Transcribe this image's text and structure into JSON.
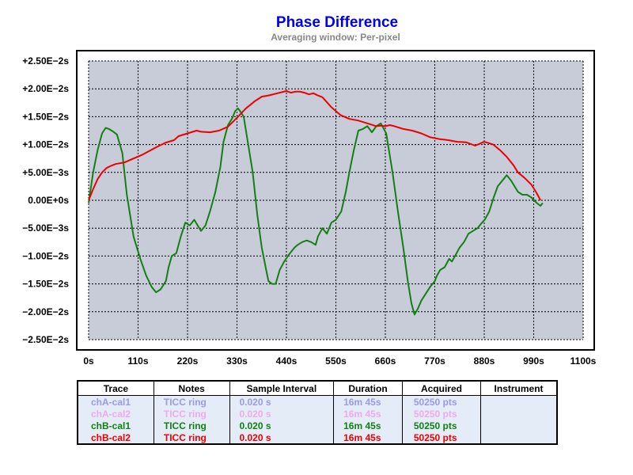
{
  "title": "Phase Difference",
  "subtitle": "Averaging window: Per-pixel",
  "chart_data": {
    "type": "line",
    "xlim": [
      0,
      1100
    ],
    "ylim": [
      -0.025,
      0.025
    ],
    "x_ticks": [
      "0s",
      "110s",
      "220s",
      "330s",
      "440s",
      "550s",
      "660s",
      "770s",
      "880s",
      "990s",
      "1100s"
    ],
    "y_ticks": [
      "+2.50E−2s",
      "+2.00E−2s",
      "+1.50E−2s",
      "+1.00E−2s",
      "+5.00E−3s",
      "0.00E+0s",
      "−5.00E−3s",
      "−1.00E−2s",
      "−1.50E−2s",
      "−2.00E−2s",
      "−2.50E−2s"
    ],
    "y_tick_values": [
      0.025,
      0.02,
      0.015,
      0.01,
      0.005,
      0,
      -0.005,
      -0.01,
      -0.015,
      -0.02,
      -0.025
    ],
    "grid": true,
    "plot_bg": "#c8ccd8",
    "series": [
      {
        "name": "chB-cal1",
        "color": "#138013",
        "x": [
          0,
          10,
          20,
          30,
          38,
          45,
          55,
          63,
          75,
          85,
          100,
          115,
          128,
          140,
          150,
          160,
          172,
          178,
          185,
          195,
          205,
          215,
          225,
          235,
          250,
          260,
          270,
          282,
          293,
          300,
          310,
          320,
          326,
          332,
          337,
          345,
          355,
          365,
          375,
          385,
          395,
          400,
          408,
          416,
          425,
          435,
          445,
          458,
          465,
          475,
          485,
          495,
          505,
          510,
          520,
          530,
          540,
          550,
          562,
          572,
          580,
          590,
          600,
          610,
          620,
          630,
          640,
          650,
          662,
          676,
          688,
          700,
          710,
          718,
          725,
          732,
          740,
          748,
          760,
          770,
          775,
          782,
          792,
          802,
          808,
          815,
          825,
          835,
          845,
          855,
          865,
          873,
          881,
          891,
          901,
          910,
          920,
          930,
          940,
          955,
          965,
          975,
          985,
          997,
          1005,
          1010
        ],
        "y": [
          -0.0005,
          0.005,
          0.009,
          0.012,
          0.013,
          0.0128,
          0.0123,
          0.0118,
          0.0085,
          0.001,
          -0.0065,
          -0.0105,
          -0.0135,
          -0.0155,
          -0.0165,
          -0.016,
          -0.0145,
          -0.012,
          -0.01,
          -0.0095,
          -0.0065,
          -0.004,
          -0.0045,
          -0.0035,
          -0.0055,
          -0.0045,
          -0.002,
          0.0015,
          0.006,
          0.0105,
          0.0135,
          0.0148,
          0.016,
          0.0165,
          0.016,
          0.015,
          0.01,
          0.005,
          -0.0025,
          -0.0085,
          -0.0125,
          -0.0145,
          -0.015,
          -0.015,
          -0.0125,
          -0.011,
          -0.0098,
          -0.0085,
          -0.008,
          -0.0075,
          -0.0072,
          -0.0075,
          -0.008,
          -0.0065,
          -0.005,
          -0.006,
          -0.004,
          -0.0035,
          -0.002,
          0.0015,
          0.005,
          0.009,
          0.0125,
          0.0128,
          0.0133,
          0.0122,
          0.0133,
          0.0138,
          0.012,
          0.005,
          -0.002,
          -0.0085,
          -0.0145,
          -0.0185,
          -0.0205,
          -0.0195,
          -0.018,
          -0.017,
          -0.0155,
          -0.0145,
          -0.0135,
          -0.0125,
          -0.012,
          -0.0105,
          -0.011,
          -0.01,
          -0.0085,
          -0.0075,
          -0.006,
          -0.0055,
          -0.005,
          -0.0042,
          -0.0035,
          -0.002,
          0.0005,
          0.0025,
          0.0035,
          0.0045,
          0.0035,
          0.0015,
          0.001,
          0.001,
          0.0005,
          -0.0005,
          -0.001,
          -0.0005
        ]
      },
      {
        "name": "chB-cal2",
        "color": "#ee0000",
        "x": [
          0,
          10,
          20,
          30,
          40,
          50,
          60,
          80,
          100,
          120,
          150,
          170,
          190,
          200,
          220,
          240,
          250,
          270,
          290,
          310,
          330,
          350,
          370,
          385,
          400,
          420,
          440,
          450,
          460,
          470,
          480,
          490,
          500,
          510,
          520,
          530,
          540,
          550,
          560,
          580,
          600,
          620,
          640,
          650,
          660,
          670,
          680,
          700,
          720,
          740,
          760,
          780,
          800,
          820,
          840,
          860,
          880,
          900,
          915,
          930,
          945,
          955,
          970,
          985,
          995,
          1000,
          1005
        ],
        "y": [
          0,
          0.002,
          0.0038,
          0.005,
          0.0058,
          0.0062,
          0.0065,
          0.0068,
          0.0075,
          0.0082,
          0.0095,
          0.0103,
          0.0108,
          0.0115,
          0.012,
          0.0125,
          0.0123,
          0.0122,
          0.0125,
          0.0132,
          0.0148,
          0.0165,
          0.0178,
          0.0186,
          0.0188,
          0.0192,
          0.0196,
          0.0193,
          0.0195,
          0.0195,
          0.0193,
          0.019,
          0.0192,
          0.0188,
          0.0185,
          0.0176,
          0.0167,
          0.016,
          0.0153,
          0.0146,
          0.0143,
          0.0138,
          0.0133,
          0.0134,
          0.0133,
          0.0135,
          0.0133,
          0.0128,
          0.0125,
          0.012,
          0.0113,
          0.011,
          0.0108,
          0.0105,
          0.0104,
          0.0098,
          0.0105,
          0.01,
          0.009,
          0.0078,
          0.0063,
          0.005,
          0.004,
          0.0028,
          0.0015,
          0.0008,
          0
        ]
      }
    ]
  },
  "legend_table": {
    "headers": [
      "Trace",
      "Notes",
      "Sample Interval",
      "Duration",
      "Acquired",
      "Instrument"
    ],
    "rows": [
      {
        "trace": "chA-cal1",
        "notes": "TICC ring",
        "interval": "0.020 s",
        "duration": "16m 45s",
        "acquired": "50250 pts",
        "instrument": "",
        "color": "#9a9ae6"
      },
      {
        "trace": "chA-cal2",
        "notes": "TICC ring",
        "interval": "0.020 s",
        "duration": "16m 45s",
        "acquired": "50250 pts",
        "instrument": "",
        "color": "#f0a8f0"
      },
      {
        "trace": "chB-cal1",
        "notes": "TICC ring",
        "interval": "0.020 s",
        "duration": "16m 45s",
        "acquired": "50250 pts",
        "instrument": "",
        "color": "#138013"
      },
      {
        "trace": "chB-cal2",
        "notes": "TICC ring",
        "interval": "0.020 s",
        "duration": "16m 45s",
        "acquired": "50250 pts",
        "instrument": "",
        "color": "#ee0000"
      }
    ]
  }
}
